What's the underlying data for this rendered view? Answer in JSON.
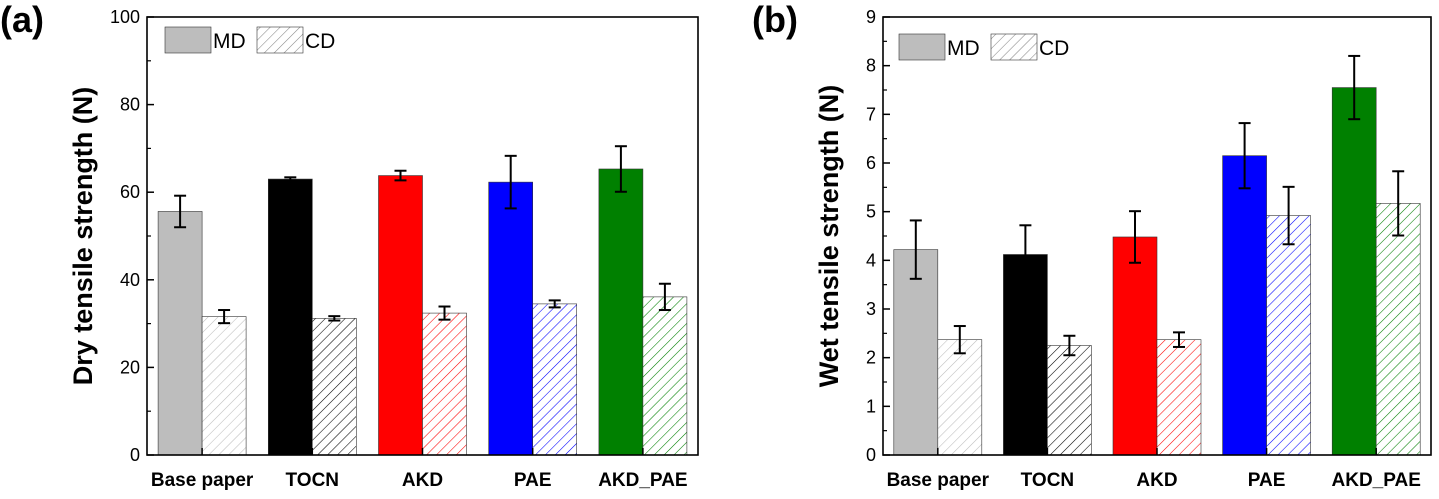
{
  "chart_data": [
    {
      "type": "bar",
      "panel_label": "(a)",
      "title": "",
      "xlabel": "",
      "ylabel": "Dry tensile strength (N)",
      "ylim": [
        0,
        100
      ],
      "yticks": [
        0,
        20,
        40,
        60,
        80,
        100
      ],
      "grid": false,
      "legend_position": "top-left",
      "categories": [
        "Base paper",
        "TOCN",
        "AKD",
        "PAE",
        "AKD_PAE"
      ],
      "colors": [
        "#bdbdbd",
        "#000000",
        "#ff0000",
        "#0000ff",
        "#008000"
      ],
      "series": [
        {
          "name": "MD",
          "style": "solid",
          "values": [
            55.6,
            63.0,
            63.8,
            62.3,
            65.3
          ],
          "errors": [
            3.6,
            0.4,
            1.1,
            6.0,
            5.2
          ]
        },
        {
          "name": "CD",
          "style": "hatched",
          "values": [
            31.6,
            31.2,
            32.4,
            34.5,
            36.1
          ],
          "errors": [
            1.5,
            0.5,
            1.5,
            0.8,
            3.0
          ]
        }
      ]
    },
    {
      "type": "bar",
      "panel_label": "(b)",
      "title": "",
      "xlabel": "",
      "ylabel": "Wet tensile strength (N)",
      "ylim": [
        0,
        9
      ],
      "yticks": [
        0,
        1,
        2,
        3,
        4,
        5,
        6,
        7,
        8,
        9
      ],
      "grid": false,
      "legend_position": "top-left",
      "categories": [
        "Base paper",
        "TOCN",
        "AKD",
        "PAE",
        "AKD_PAE"
      ],
      "colors": [
        "#bdbdbd",
        "#000000",
        "#ff0000",
        "#0000ff",
        "#008000"
      ],
      "series": [
        {
          "name": "MD",
          "style": "solid",
          "values": [
            4.22,
            4.12,
            4.48,
            6.15,
            7.55
          ],
          "errors": [
            0.6,
            0.6,
            0.53,
            0.67,
            0.65
          ]
        },
        {
          "name": "CD",
          "style": "hatched",
          "values": [
            2.37,
            2.25,
            2.37,
            4.92,
            5.17
          ],
          "errors": [
            0.28,
            0.2,
            0.15,
            0.59,
            0.66
          ]
        }
      ]
    }
  ]
}
